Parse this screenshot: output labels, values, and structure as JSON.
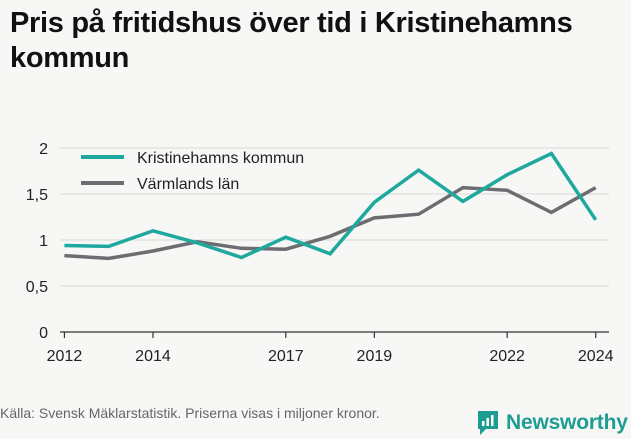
{
  "header": {
    "title": "Pris på fritidshus över tid i Kristinehamns kommun"
  },
  "footer": {
    "source": "Källa: Svensk Mäklarstatistik. Priserna visas i miljoner kronor.",
    "brand": "Newsworthy",
    "brand_icon": "newsworthy-logo-icon"
  },
  "colors": {
    "accent": "#1fa99e",
    "secondary": "#6d6c71",
    "grid": "#d9d9d9",
    "brand": "#1e9e93"
  },
  "chart_data": {
    "type": "line",
    "x": [
      2012,
      2013,
      2014,
      2015,
      2016,
      2017,
      2018,
      2019,
      2020,
      2021,
      2022,
      2023,
      2024
    ],
    "xticks": [
      "2012",
      "2014",
      "2017",
      "2019",
      "2022",
      "2024"
    ],
    "yticks": [
      "0",
      "0,5",
      "1",
      "1,5",
      "2"
    ],
    "ylim": [
      0,
      2
    ],
    "xlim": [
      2011.9,
      2024.3
    ],
    "grid": true,
    "legend_position": "top-left",
    "series": [
      {
        "name": "Kristinehamns kommun",
        "color": "#1fa99e",
        "values": [
          0.94,
          0.93,
          1.1,
          0.97,
          0.81,
          1.03,
          0.85,
          1.41,
          1.76,
          1.42,
          1.71,
          1.94,
          1.22
        ]
      },
      {
        "name": "Värmlands län",
        "color": "#6d6c71",
        "values": [
          0.83,
          0.8,
          0.88,
          0.98,
          0.91,
          0.9,
          1.04,
          1.24,
          1.28,
          1.57,
          1.54,
          1.3,
          1.57
        ]
      }
    ]
  }
}
